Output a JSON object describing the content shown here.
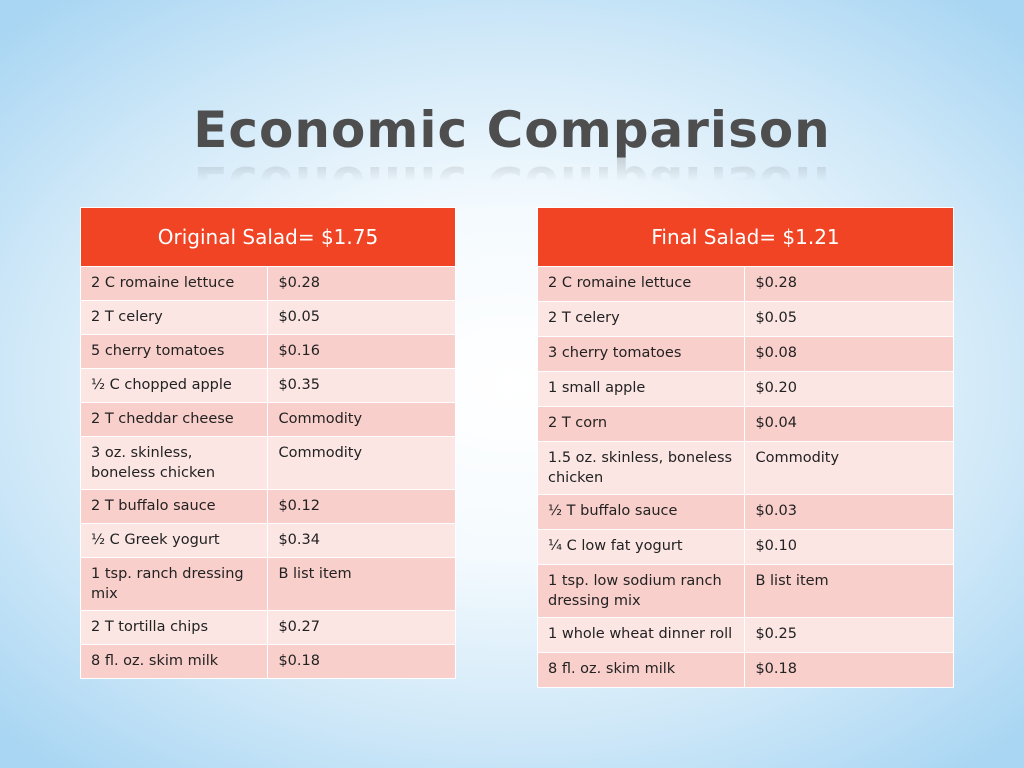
{
  "title": "Economic Comparison",
  "tables": [
    {
      "header": "Original Salad= $1.75",
      "rows": [
        [
          "2 C romaine lettuce",
          "$0.28"
        ],
        [
          "2 T celery",
          "$0.05"
        ],
        [
          "5 cherry tomatoes",
          "$0.16"
        ],
        [
          "½  C chopped apple",
          "$0.35"
        ],
        [
          "2 T cheddar cheese",
          "Commodity"
        ],
        [
          "3 oz. skinless, boneless chicken",
          "Commodity"
        ],
        [
          "2 T buffalo sauce",
          "$0.12"
        ],
        [
          "½  C Greek yogurt",
          "$0.34"
        ],
        [
          "1 tsp. ranch dressing mix",
          "B list item"
        ],
        [
          "2 T tortilla chips",
          "$0.27"
        ],
        [
          "8 fl. oz. skim milk",
          "$0.18"
        ]
      ]
    },
    {
      "header": "Final Salad= $1.21",
      "rows": [
        [
          "2 C romaine lettuce",
          "$0.28"
        ],
        [
          "2 T celery",
          "$0.05"
        ],
        [
          "3 cherry tomatoes",
          "$0.08"
        ],
        [
          "1 small apple",
          "$0.20"
        ],
        [
          "2 T corn",
          "$0.04"
        ],
        [
          "1.5 oz. skinless, boneless chicken",
          "Commodity"
        ],
        [
          "½ T buffalo sauce",
          "$0.03"
        ],
        [
          "¼ C low fat yogurt",
          "$0.10"
        ],
        [
          "1 tsp. low sodium ranch dressing mix",
          "B list item"
        ],
        [
          "1 whole wheat dinner roll",
          "$0.25"
        ],
        [
          "8 fl. oz. skim milk",
          "$0.18"
        ]
      ]
    }
  ],
  "colors": {
    "header_bg": "#f04424",
    "row_odd": "#f9cfcb",
    "row_even": "#fbe6e4",
    "title_text": "#4e4e4e"
  }
}
